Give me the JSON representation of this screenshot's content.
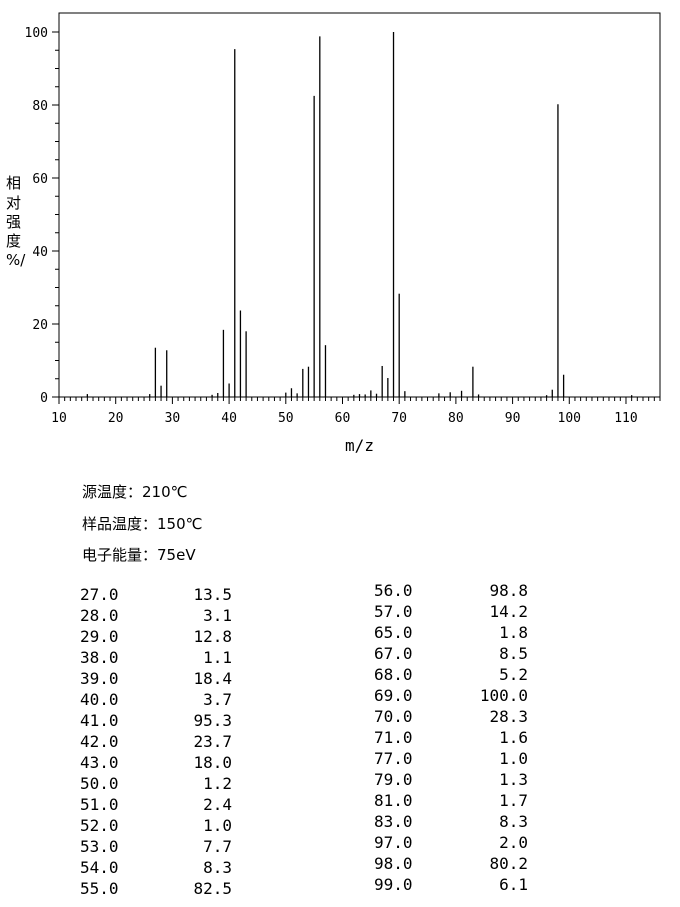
{
  "chart_data": {
    "type": "bar",
    "xlabel": "m/z",
    "ylabel": "相对强度/%",
    "xlim": [
      10,
      116
    ],
    "ylim": [
      0,
      105
    ],
    "xticks": [
      10,
      20,
      30,
      40,
      50,
      60,
      70,
      80,
      90,
      100,
      110
    ],
    "yticks": [
      0,
      20,
      40,
      60,
      80,
      100
    ],
    "grid": false,
    "peaks": [
      {
        "mz": 15,
        "i": 0.8
      },
      {
        "mz": 26,
        "i": 0.8
      },
      {
        "mz": 27,
        "i": 13.5
      },
      {
        "mz": 28,
        "i": 3.1
      },
      {
        "mz": 29,
        "i": 12.8
      },
      {
        "mz": 37,
        "i": 0.6
      },
      {
        "mz": 38,
        "i": 1.1
      },
      {
        "mz": 39,
        "i": 18.4
      },
      {
        "mz": 40,
        "i": 3.7
      },
      {
        "mz": 41,
        "i": 95.3
      },
      {
        "mz": 42,
        "i": 23.7
      },
      {
        "mz": 43,
        "i": 18.0
      },
      {
        "mz": 50,
        "i": 1.2
      },
      {
        "mz": 51,
        "i": 2.4
      },
      {
        "mz": 52,
        "i": 1.0
      },
      {
        "mz": 53,
        "i": 7.7
      },
      {
        "mz": 54,
        "i": 8.3
      },
      {
        "mz": 55,
        "i": 82.5
      },
      {
        "mz": 56,
        "i": 98.8
      },
      {
        "mz": 57,
        "i": 14.2
      },
      {
        "mz": 62,
        "i": 0.6
      },
      {
        "mz": 63,
        "i": 0.8
      },
      {
        "mz": 64,
        "i": 0.7
      },
      {
        "mz": 65,
        "i": 1.8
      },
      {
        "mz": 66,
        "i": 0.9
      },
      {
        "mz": 67,
        "i": 8.5
      },
      {
        "mz": 68,
        "i": 5.2
      },
      {
        "mz": 69,
        "i": 100.0
      },
      {
        "mz": 70,
        "i": 28.3
      },
      {
        "mz": 71,
        "i": 1.6
      },
      {
        "mz": 77,
        "i": 1.0
      },
      {
        "mz": 79,
        "i": 1.3
      },
      {
        "mz": 81,
        "i": 1.7
      },
      {
        "mz": 83,
        "i": 8.3
      },
      {
        "mz": 84,
        "i": 0.7
      },
      {
        "mz": 96,
        "i": 0.5
      },
      {
        "mz": 97,
        "i": 2.0
      },
      {
        "mz": 98,
        "i": 80.2
      },
      {
        "mz": 99,
        "i": 6.1
      },
      {
        "mz": 111,
        "i": 0.5
      }
    ]
  },
  "ylabel_chars": [
    "相",
    "对",
    "强",
    "度",
    "%/"
  ],
  "info": {
    "source_temp": "源温度：210℃",
    "sample_temp": "样品温度：150℃",
    "electron_energy": "电子能量：75eV"
  },
  "table_left": [
    [
      "27.0",
      "13.5"
    ],
    [
      "28.0",
      "3.1"
    ],
    [
      "29.0",
      "12.8"
    ],
    [
      "38.0",
      "1.1"
    ],
    [
      "39.0",
      "18.4"
    ],
    [
      "40.0",
      "3.7"
    ],
    [
      "41.0",
      "95.3"
    ],
    [
      "42.0",
      "23.7"
    ],
    [
      "43.0",
      "18.0"
    ],
    [
      "50.0",
      "1.2"
    ],
    [
      "51.0",
      "2.4"
    ],
    [
      "52.0",
      "1.0"
    ],
    [
      "53.0",
      "7.7"
    ],
    [
      "54.0",
      "8.3"
    ],
    [
      "55.0",
      "82.5"
    ]
  ],
  "table_right": [
    [
      "56.0",
      "98.8"
    ],
    [
      "57.0",
      "14.2"
    ],
    [
      "65.0",
      "1.8"
    ],
    [
      "67.0",
      "8.5"
    ],
    [
      "68.0",
      "5.2"
    ],
    [
      "69.0",
      "100.0"
    ],
    [
      "70.0",
      "28.3"
    ],
    [
      "71.0",
      "1.6"
    ],
    [
      "77.0",
      "1.0"
    ],
    [
      "79.0",
      "1.3"
    ],
    [
      "81.0",
      "1.7"
    ],
    [
      "83.0",
      "8.3"
    ],
    [
      "97.0",
      "2.0"
    ],
    [
      "98.0",
      "80.2"
    ],
    [
      "99.0",
      "6.1"
    ]
  ]
}
